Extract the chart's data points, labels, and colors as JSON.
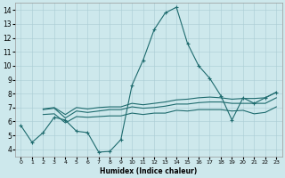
{
  "title": "",
  "xlabel": "Humidex (Indice chaleur)",
  "xlim": [
    -0.5,
    23.5
  ],
  "ylim": [
    3.5,
    14.5
  ],
  "xticks": [
    0,
    1,
    2,
    3,
    4,
    5,
    6,
    7,
    8,
    9,
    10,
    11,
    12,
    13,
    14,
    15,
    16,
    17,
    18,
    19,
    20,
    21,
    22,
    23
  ],
  "yticks": [
    4,
    5,
    6,
    7,
    8,
    9,
    10,
    11,
    12,
    13,
    14
  ],
  "bg_color": "#cde8ec",
  "grid_color": "#aacdd4",
  "line_color": "#1e6b6e",
  "lines": [
    {
      "x": [
        0,
        1,
        2,
        3,
        4,
        5,
        6,
        7,
        8,
        9,
        10,
        11,
        12,
        13,
        14,
        15,
        16,
        17,
        18,
        19,
        20,
        21,
        22,
        23
      ],
      "y": [
        5.7,
        4.5,
        5.2,
        6.3,
        6.1,
        5.3,
        5.2,
        3.8,
        3.85,
        4.7,
        8.6,
        10.4,
        12.6,
        13.8,
        14.2,
        11.6,
        10.0,
        9.1,
        7.85,
        6.1,
        7.7,
        7.3,
        7.7,
        8.1
      ],
      "marker": true
    },
    {
      "x": [
        2,
        3,
        4,
        5,
        6,
        7,
        8,
        9,
        10,
        11,
        12,
        13,
        14,
        15,
        16,
        17,
        18,
        19,
        20,
        21,
        22,
        23
      ],
      "y": [
        6.9,
        7.0,
        6.5,
        7.0,
        6.9,
        7.0,
        7.05,
        7.05,
        7.3,
        7.2,
        7.3,
        7.4,
        7.55,
        7.6,
        7.7,
        7.75,
        7.7,
        7.6,
        7.65,
        7.65,
        7.7,
        8.1
      ],
      "marker": false
    },
    {
      "x": [
        2,
        3,
        4,
        5,
        6,
        7,
        8,
        9,
        10,
        11,
        12,
        13,
        14,
        15,
        16,
        17,
        18,
        19,
        20,
        21,
        22,
        23
      ],
      "y": [
        6.85,
        6.95,
        6.25,
        6.75,
        6.65,
        6.75,
        6.85,
        6.85,
        7.05,
        6.95,
        7.0,
        7.1,
        7.25,
        7.25,
        7.35,
        7.4,
        7.4,
        7.3,
        7.3,
        7.3,
        7.3,
        7.7
      ],
      "marker": false
    },
    {
      "x": [
        2,
        3,
        4,
        5,
        6,
        7,
        8,
        9,
        10,
        11,
        12,
        13,
        14,
        15,
        16,
        17,
        18,
        19,
        20,
        21,
        22,
        23
      ],
      "y": [
        6.5,
        6.55,
        5.9,
        6.35,
        6.3,
        6.35,
        6.4,
        6.4,
        6.6,
        6.5,
        6.6,
        6.6,
        6.8,
        6.75,
        6.85,
        6.85,
        6.85,
        6.75,
        6.8,
        6.55,
        6.65,
        7.05
      ],
      "marker": false
    }
  ]
}
